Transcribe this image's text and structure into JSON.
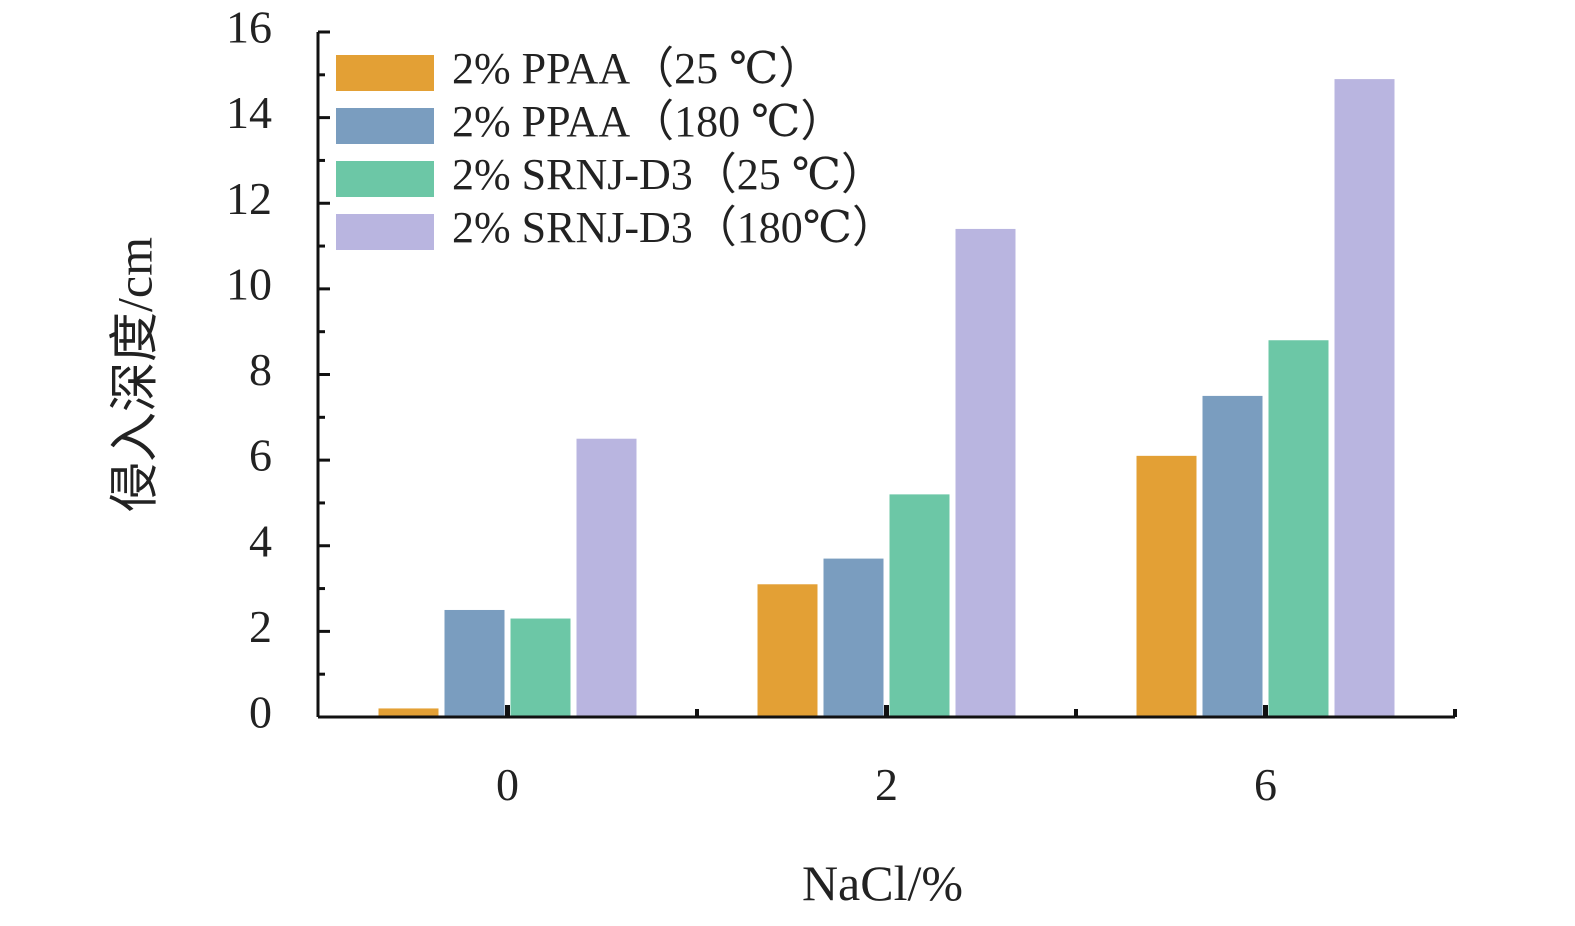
{
  "chart_data": {
    "type": "bar",
    "title": "",
    "xlabel": "NaCl/%",
    "ylabel": "侵入深度/cm",
    "categories": [
      "0",
      "2",
      "6"
    ],
    "ylim": [
      0,
      16
    ],
    "yticks": [
      "0",
      "2",
      "4",
      "6",
      "8",
      "10",
      "12",
      "14",
      "16"
    ],
    "grid": false,
    "legend_position": "top-left",
    "series": [
      {
        "name": "2% PPAA（25 ℃）",
        "color": "#E3A035",
        "values": [
          0.2,
          3.1,
          6.1
        ]
      },
      {
        "name": "2% PPAA（180 ℃）",
        "color": "#7A9DBF",
        "values": [
          2.5,
          3.7,
          7.5
        ]
      },
      {
        "name": "2% SRNJ-D3（25 ℃）",
        "color": "#6CC7A6",
        "values": [
          2.3,
          5.2,
          8.8
        ]
      },
      {
        "name": "2% SRNJ-D3（180℃）",
        "color": "#B9B5E0",
        "values": [
          6.5,
          11.4,
          14.9
        ]
      }
    ]
  }
}
